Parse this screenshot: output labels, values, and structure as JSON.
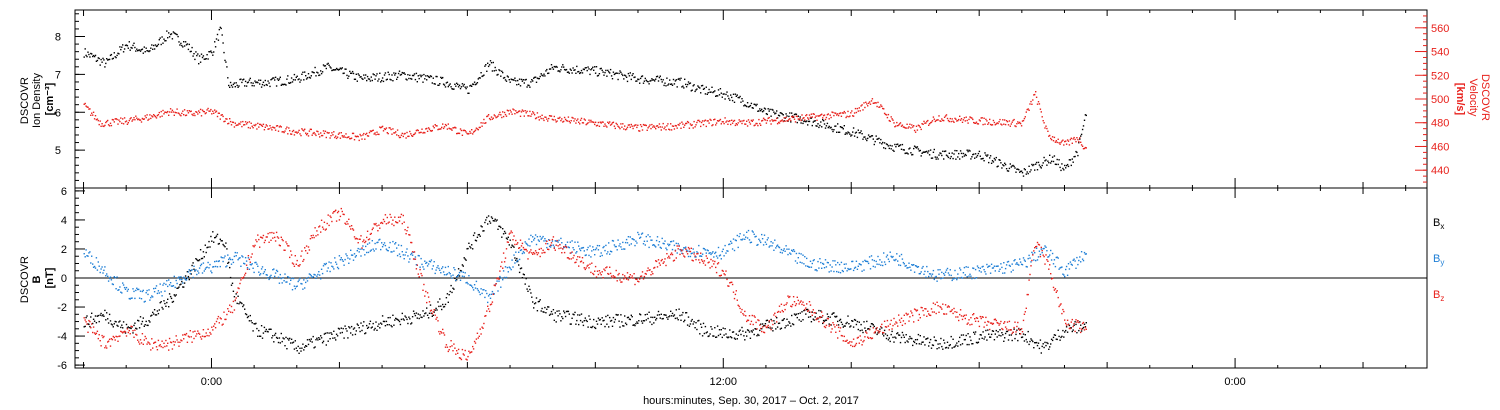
{
  "figure": {
    "xlabel": "hours:minutes, Sep. 30, 2017 – Oct. 2, 2017"
  },
  "colors": {
    "black": "#000000",
    "red": "#e8211c",
    "blue": "#1f7fd6"
  },
  "chart_data": [
    {
      "type": "line",
      "panel": "top",
      "ylabel_left": [
        "DSCOVR",
        "Ion Density",
        "[cm⁻³]"
      ],
      "ylabel_right": [
        "DSCOVR",
        "Velocity",
        "[km/s]"
      ],
      "xlim_hours": [
        -3.2,
        28.5
      ],
      "data_end_hours": 20.5,
      "x_ticks": [
        {
          "hour": 0,
          "label": "0:00"
        },
        {
          "hour": 12,
          "label": "12:00"
        },
        {
          "hour": 24,
          "label": "0:00"
        }
      ],
      "y_left": {
        "lim": [
          4.0,
          8.7
        ],
        "ticks": [
          5,
          6,
          7,
          8
        ],
        "color": "#000000"
      },
      "y_right": {
        "lim": [
          425,
          575
        ],
        "ticks": [
          440,
          460,
          480,
          500,
          520,
          540,
          560
        ],
        "color": "#e8211c"
      },
      "series": [
        {
          "axis": "left",
          "color": "#000000",
          "x": [
            -3.0,
            -2.5,
            -2.0,
            -1.5,
            -1.0,
            -0.6,
            -0.3,
            0.0,
            0.2,
            0.4,
            0.8,
            1.3,
            2.0,
            2.7,
            3.5,
            4.5,
            5.5,
            6.0,
            6.5,
            7.0,
            7.5,
            8.0,
            9.0,
            10.0,
            11.0,
            11.5,
            12.0,
            12.5,
            13.0,
            14.0,
            15.0,
            16.0,
            17.0,
            18.0,
            19.0,
            19.3,
            19.7,
            20.0,
            20.3,
            20.5
          ],
          "y": [
            7.6,
            7.3,
            7.8,
            7.6,
            8.1,
            7.8,
            7.4,
            7.6,
            8.2,
            6.7,
            6.8,
            6.8,
            6.9,
            7.2,
            6.9,
            7.0,
            6.8,
            6.6,
            7.3,
            6.8,
            6.8,
            7.2,
            7.1,
            6.9,
            6.8,
            6.6,
            6.5,
            6.3,
            6.0,
            5.8,
            5.5,
            5.1,
            4.9,
            4.9,
            4.4,
            4.6,
            4.8,
            4.5,
            5.0,
            6.0
          ]
        },
        {
          "axis": "right",
          "color": "#e8211c",
          "x": [
            -3.0,
            -2.6,
            -2.0,
            -1.5,
            -1.0,
            -0.5,
            0.0,
            0.5,
            1.0,
            2.0,
            3.0,
            3.5,
            4.0,
            4.5,
            5.0,
            5.5,
            6.0,
            6.5,
            7.0,
            8.0,
            9.0,
            10.0,
            11.0,
            12.0,
            12.5,
            13.0,
            14.0,
            15.0,
            15.5,
            16.0,
            16.5,
            17.0,
            18.0,
            19.0,
            19.3,
            19.6,
            20.0,
            20.3,
            20.5
          ],
          "y": [
            495,
            480,
            482,
            485,
            490,
            488,
            490,
            480,
            478,
            473,
            470,
            468,
            475,
            470,
            475,
            478,
            470,
            485,
            490,
            484,
            480,
            476,
            478,
            482,
            480,
            482,
            485,
            488,
            500,
            480,
            475,
            485,
            482,
            480,
            505,
            470,
            462,
            468,
            458
          ]
        }
      ]
    },
    {
      "type": "line",
      "panel": "bottom",
      "ylabel_left": [
        "DSCOVR",
        "B",
        "[nT]"
      ],
      "xlim_hours": [
        -3.2,
        28.5
      ],
      "data_end_hours": 20.5,
      "y_left": {
        "lim": [
          -6.2,
          6.2
        ],
        "ticks": [
          -6,
          -4,
          -2,
          0,
          2,
          4,
          6
        ],
        "color": "#000000"
      },
      "zero_line": true,
      "legend_position": "right",
      "series": [
        {
          "name": "Bx",
          "legend_main": "B",
          "legend_sub": "x",
          "color": "#000000",
          "x": [
            -3.0,
            -2.5,
            -2.0,
            -1.5,
            -1.0,
            -0.5,
            0.0,
            0.3,
            0.5,
            1.0,
            1.5,
            2.0,
            3.0,
            4.0,
            5.0,
            5.5,
            6.0,
            6.5,
            7.0,
            7.5,
            8.0,
            9.0,
            10.0,
            11.0,
            11.5,
            12.0,
            12.5,
            13.0,
            14.0,
            15.0,
            16.0,
            17.0,
            18.0,
            19.0,
            19.5,
            20.0,
            20.5
          ],
          "y": [
            -3.0,
            -2.5,
            -3.5,
            -2.8,
            -1.5,
            0.5,
            2.8,
            2.5,
            -1.0,
            -3.5,
            -4.0,
            -4.8,
            -3.8,
            -3.0,
            -2.5,
            -1.5,
            2.0,
            4.3,
            2.5,
            -1.5,
            -2.5,
            -3.0,
            -2.8,
            -2.5,
            -3.5,
            -3.8,
            -3.8,
            -3.3,
            -2.5,
            -3.0,
            -4.0,
            -4.5,
            -4.0,
            -3.8,
            -4.8,
            -3.5,
            -3.2
          ]
        },
        {
          "name": "By",
          "legend_main": "B",
          "legend_sub": "y",
          "color": "#1f7fd6",
          "x": [
            -3.0,
            -2.5,
            -2.0,
            -1.5,
            -1.0,
            -0.5,
            0.0,
            0.5,
            1.0,
            2.0,
            3.0,
            4.0,
            5.0,
            6.0,
            6.5,
            7.0,
            7.5,
            8.0,
            9.0,
            10.0,
            11.0,
            12.0,
            12.5,
            13.0,
            14.0,
            15.0,
            16.0,
            17.0,
            18.0,
            19.0,
            19.5,
            20.0,
            20.5
          ],
          "y": [
            1.8,
            0.5,
            -1.0,
            -1.2,
            -0.5,
            0.5,
            0.8,
            1.5,
            0.8,
            -0.5,
            1.2,
            2.5,
            1.0,
            0.0,
            -1.5,
            1.0,
            2.8,
            2.5,
            1.8,
            2.8,
            2.0,
            1.8,
            3.0,
            2.5,
            1.0,
            0.8,
            1.5,
            0.2,
            0.5,
            1.0,
            2.0,
            0.5,
            1.8
          ]
        },
        {
          "name": "Bz",
          "legend_main": "B",
          "legend_sub": "z",
          "color": "#e8211c",
          "x": [
            -3.0,
            -2.5,
            -2.0,
            -1.5,
            -1.0,
            -0.5,
            0.0,
            0.5,
            1.0,
            1.5,
            2.0,
            2.5,
            3.0,
            3.5,
            4.0,
            4.5,
            5.0,
            5.5,
            6.0,
            6.5,
            7.0,
            7.5,
            8.0,
            9.0,
            10.0,
            11.0,
            12.0,
            12.5,
            13.0,
            13.5,
            14.0,
            15.0,
            16.0,
            17.0,
            18.0,
            19.0,
            19.3,
            19.6,
            20.0,
            20.5
          ],
          "y": [
            -3.0,
            -4.5,
            -3.5,
            -4.5,
            -4.5,
            -4.0,
            -3.5,
            -2.0,
            2.5,
            3.0,
            1.0,
            3.5,
            4.5,
            2.5,
            4.0,
            4.0,
            -1.0,
            -4.5,
            -5.5,
            -2.0,
            3.0,
            1.5,
            2.5,
            0.5,
            0.0,
            2.0,
            0.5,
            -2.5,
            -3.5,
            -1.5,
            -2.0,
            -4.5,
            -3.0,
            -2.0,
            -3.0,
            -3.5,
            2.5,
            1.0,
            -3.0,
            -3.5
          ]
        }
      ]
    }
  ]
}
